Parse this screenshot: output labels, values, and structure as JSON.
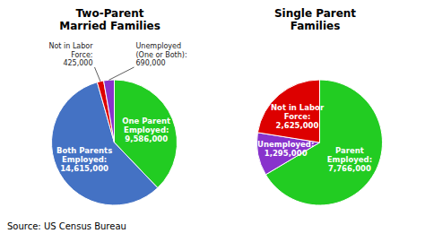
{
  "chart_data": [
    {
      "type": "pie",
      "title": "Two-Parent\nMarried Families",
      "categories": [
        "One Parent\nEmployed:",
        "Both Parents\nEmployed:",
        "Not in Labor\nForce:",
        "Unemployed\n(One or Both):"
      ],
      "values": [
        9586000,
        14615000,
        425000,
        690000
      ],
      "value_labels": [
        "9,586,000",
        "14,615,000",
        "425,000",
        "690,000"
      ],
      "colors": [
        "#22CC22",
        "#4472C4",
        "#DD0000",
        "#8833CC"
      ],
      "data_labels": true
    },
    {
      "type": "pie",
      "title": "Single Parent\nFamilies",
      "categories": [
        "Parent\nEmployed:",
        "Unemployed:",
        "Not in Labor\nForce:"
      ],
      "values": [
        7766000,
        1295000,
        2625000
      ],
      "value_labels": [
        "7,766,000",
        "1,295,000",
        "2,625,000"
      ],
      "colors": [
        "#22CC22",
        "#8833CC",
        "#DD0000"
      ],
      "data_labels": true
    }
  ],
  "annotations": [
    "Source: US Census Bureau"
  ]
}
